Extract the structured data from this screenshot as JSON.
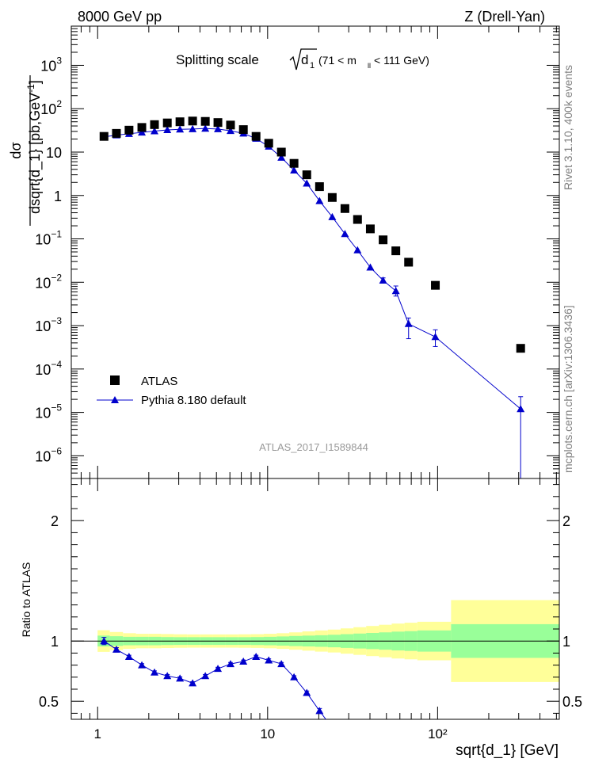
{
  "header": {
    "left": "8000 GeV pp",
    "right": "Z (Drell-Yan)"
  },
  "side_text": {
    "rivet": "Rivet 3.1.10,  400k events",
    "mcplots": "mcplots.cern.ch [arXiv:1306.3436]"
  },
  "chart_data": [
    {
      "type": "scatter",
      "panel": "main",
      "title_prefix": "Splitting scale",
      "title_symbol": "d",
      "title_symbol_sub": "1",
      "title_range_lo": "(71 < m",
      "title_range_sub": "ll",
      "title_range_hi": " < 111 GeV)",
      "ylabel": "dσ/dsqrt{d_1} [pb,GeV⁻¹]",
      "ylabel_num": "dσ",
      "ylabel_den": "dsqrt{d_1} [pb,GeV",
      "ylabel_sup": "-1",
      "ylabel_close": "]",
      "watermark": "ATLAS_2017_I1589844",
      "xscale": "log",
      "yscale": "log",
      "xlim": [
        0.7,
        520
      ],
      "ylim": [
        3e-07,
        8000
      ],
      "x_tick_labels": [
        "1",
        "10",
        "10²"
      ],
      "y_tick_labels": [
        {
          "m": "10",
          "e": "3"
        },
        {
          "m": "10",
          "e": "2"
        },
        {
          "m": "10",
          "e": ""
        },
        {
          "m": "1",
          "e": ""
        },
        {
          "m": "10",
          "e": "−1"
        },
        {
          "m": "10",
          "e": "−2"
        },
        {
          "m": "10",
          "e": "−3"
        },
        {
          "m": "10",
          "e": "−4"
        },
        {
          "m": "10",
          "e": "−5"
        },
        {
          "m": "10",
          "e": "−6"
        }
      ],
      "legend": {
        "position": "bottom-left",
        "entries": [
          "ATLAS",
          "Pythia 8.180 default"
        ]
      },
      "series": [
        {
          "name": "ATLAS",
          "marker": "square",
          "color": "#000000",
          "x": [
            1.09,
            1.29,
            1.53,
            1.82,
            2.16,
            2.57,
            3.05,
            3.62,
            4.3,
            5.1,
            6.05,
            7.2,
            8.55,
            10.15,
            12.05,
            14.3,
            17.0,
            20.2,
            24.0,
            28.5,
            33.8,
            40.2,
            47.8,
            56.8,
            67.5,
            97.0,
            308.0
          ],
          "y": [
            23,
            27,
            32,
            37,
            43,
            47,
            50,
            52,
            51,
            48,
            42,
            33,
            23,
            16,
            10,
            5.5,
            3.0,
            1.6,
            0.9,
            0.5,
            0.28,
            0.17,
            0.095,
            0.053,
            0.029,
            0.0085,
            0.0003
          ]
        },
        {
          "name": "Pythia 8.180 default",
          "marker": "triangle",
          "color": "#0000cc",
          "x": [
            1.09,
            1.29,
            1.53,
            1.82,
            2.16,
            2.57,
            3.05,
            3.62,
            4.3,
            5.1,
            6.05,
            7.2,
            8.55,
            10.15,
            12.05,
            14.3,
            17.0,
            20.2,
            24.0,
            28.5,
            33.8,
            40.2,
            47.8,
            56.8,
            67.5,
            97.0,
            308.0
          ],
          "y": [
            22.5,
            24.5,
            26.5,
            28.5,
            30.5,
            32.5,
            33.5,
            34.0,
            35.0,
            34.0,
            31.0,
            27.0,
            20.5,
            13.5,
            7.5,
            3.8,
            1.9,
            0.75,
            0.32,
            0.13,
            0.055,
            0.022,
            0.011,
            0.0063,
            0.0011,
            0.00055,
            1.2e-05
          ],
          "err_lo": [
            0.5,
            0.5,
            0.5,
            0.5,
            0.5,
            0.5,
            0.5,
            0.5,
            0.5,
            0.5,
            0.5,
            0.5,
            0.4,
            0.3,
            0.2,
            0.1,
            0.05,
            0.02,
            0.01,
            0.004,
            0.002,
            0.001,
            0.0015,
            0.0015,
            0.0006,
            0.00022,
            1.19e-05
          ],
          "err_hi": [
            0.5,
            0.5,
            0.5,
            0.5,
            0.5,
            0.5,
            0.5,
            0.5,
            0.5,
            0.5,
            0.5,
            0.5,
            0.4,
            0.3,
            0.2,
            0.1,
            0.05,
            0.02,
            0.01,
            0.004,
            0.002,
            0.001,
            0.0016,
            0.0019,
            0.0004,
            0.00025,
            1.1e-05
          ]
        }
      ]
    },
    {
      "type": "line",
      "panel": "ratio",
      "ylabel": "Ratio to ATLAS",
      "xlabel": "sqrt{d_1} [GeV]",
      "xscale": "log",
      "xlim": [
        0.7,
        520
      ],
      "ylim": [
        0.35,
        2.35
      ],
      "y_tick_labels": [
        "0.5",
        "1",
        "2"
      ],
      "band_edges": [
        1.0,
        1.18,
        1.41,
        1.68,
        2.0,
        2.37,
        2.82,
        3.36,
        3.99,
        4.75,
        5.65,
        6.72,
        7.99,
        9.5,
        11.3,
        13.4,
        16.0,
        19.0,
        22.6,
        26.9,
        32.0,
        38.0,
        45.2,
        53.7,
        63.9,
        76.0,
        120.0,
        520.0
      ],
      "band_stat_lo": [
        0.955,
        0.96,
        0.965,
        0.965,
        0.965,
        0.967,
        0.968,
        0.968,
        0.968,
        0.968,
        0.968,
        0.968,
        0.967,
        0.965,
        0.962,
        0.958,
        0.955,
        0.952,
        0.948,
        0.943,
        0.938,
        0.933,
        0.928,
        0.922,
        0.918,
        0.912,
        0.86
      ],
      "band_stat_hi": [
        1.045,
        1.04,
        1.035,
        1.035,
        1.035,
        1.033,
        1.032,
        1.032,
        1.032,
        1.032,
        1.032,
        1.032,
        1.033,
        1.035,
        1.038,
        1.042,
        1.045,
        1.048,
        1.052,
        1.057,
        1.062,
        1.067,
        1.072,
        1.078,
        1.082,
        1.088,
        1.14
      ],
      "band_tot_lo": [
        0.91,
        0.925,
        0.935,
        0.94,
        0.94,
        0.942,
        0.944,
        0.945,
        0.945,
        0.945,
        0.945,
        0.944,
        0.943,
        0.94,
        0.935,
        0.928,
        0.92,
        0.912,
        0.905,
        0.895,
        0.885,
        0.875,
        0.865,
        0.855,
        0.848,
        0.84,
        0.66
      ],
      "band_tot_hi": [
        1.09,
        1.075,
        1.065,
        1.06,
        1.06,
        1.058,
        1.056,
        1.055,
        1.055,
        1.055,
        1.055,
        1.056,
        1.057,
        1.06,
        1.065,
        1.072,
        1.08,
        1.088,
        1.095,
        1.105,
        1.115,
        1.125,
        1.135,
        1.145,
        1.152,
        1.16,
        1.34
      ],
      "series": [
        {
          "name": "Pythia 8.180 default",
          "color": "#0000cc",
          "x": [
            1.09,
            1.29,
            1.53,
            1.82,
            2.16,
            2.57,
            3.05,
            3.62,
            4.3,
            5.1,
            6.05,
            7.2,
            8.55,
            10.15,
            12.05,
            14.3,
            17.0,
            20.2,
            22.0
          ],
          "y": [
            1.0,
            0.93,
            0.87,
            0.8,
            0.74,
            0.71,
            0.69,
            0.65,
            0.71,
            0.77,
            0.81,
            0.83,
            0.87,
            0.84,
            0.81,
            0.7,
            0.57,
            0.42,
            0.35
          ],
          "err": [
            0.03,
            0.015,
            0.012,
            0.012,
            0.012,
            0.012,
            0.012,
            0.012,
            0.012,
            0.012,
            0.012,
            0.012,
            0.012,
            0.012,
            0.012,
            0.012,
            0.015,
            0.02,
            0.0
          ]
        }
      ]
    }
  ]
}
